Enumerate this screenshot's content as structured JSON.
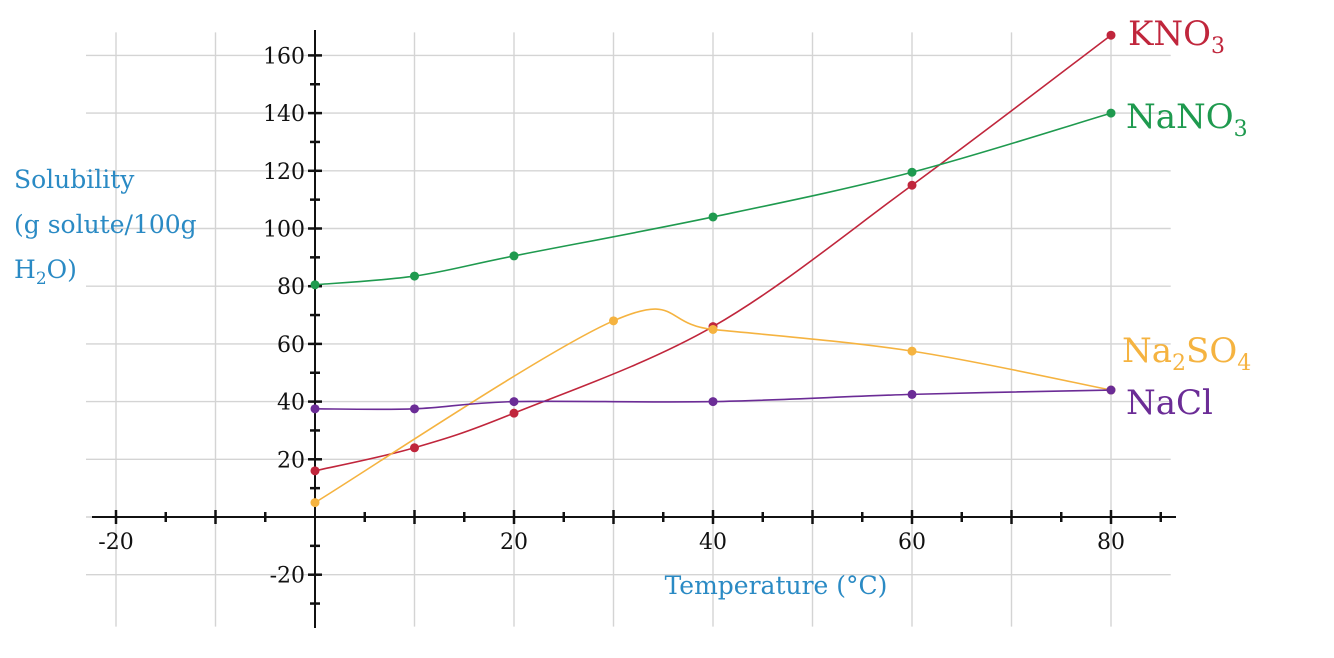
{
  "chart_data": {
    "type": "line",
    "title": "",
    "xlabel": "Temperature (°C)",
    "ylabel_lines": [
      "Solubility",
      "(g solute/100g",
      "H2O)"
    ],
    "xlim": [
      -20,
      80
    ],
    "ylim": [
      -20,
      160
    ],
    "x_ticks": [
      -20,
      20,
      40,
      60,
      80
    ],
    "y_ticks": [
      -20,
      20,
      40,
      60,
      80,
      100,
      120,
      140,
      160
    ],
    "grid": true,
    "series": [
      {
        "name": "KNO3",
        "name_main": "KNO",
        "name_sub": "3",
        "name_tail": "",
        "color": "#c0263c",
        "points": [
          [
            0,
            16
          ],
          [
            10,
            24
          ],
          [
            20,
            36
          ],
          [
            40,
            66
          ],
          [
            60,
            115
          ],
          [
            80,
            167
          ]
        ]
      },
      {
        "name": "NaNO3",
        "name_main": "NaNO",
        "name_sub": "3",
        "name_tail": "",
        "color": "#1f9a4f",
        "points": [
          [
            0,
            80.5
          ],
          [
            10,
            83.5
          ],
          [
            20,
            90.5
          ],
          [
            40,
            104
          ],
          [
            60,
            119.5
          ],
          [
            80,
            140
          ]
        ]
      },
      {
        "name": "Na2SO4",
        "name_main": "Na",
        "name_sub": "2",
        "name_tail": "SO",
        "name_sub2": "4",
        "color": "#f5b340",
        "points": [
          [
            0,
            5
          ],
          [
            30,
            68
          ],
          [
            40,
            65
          ],
          [
            60,
            57.5
          ],
          [
            80,
            44
          ]
        ]
      },
      {
        "name": "NaCl",
        "name_main": "NaCl",
        "name_sub": "",
        "name_tail": "",
        "color": "#6b2c96",
        "points": [
          [
            0,
            37.5
          ],
          [
            10,
            37.5
          ],
          [
            20,
            40
          ],
          [
            40,
            40
          ],
          [
            60,
            42.5
          ],
          [
            80,
            44
          ]
        ]
      }
    ]
  }
}
